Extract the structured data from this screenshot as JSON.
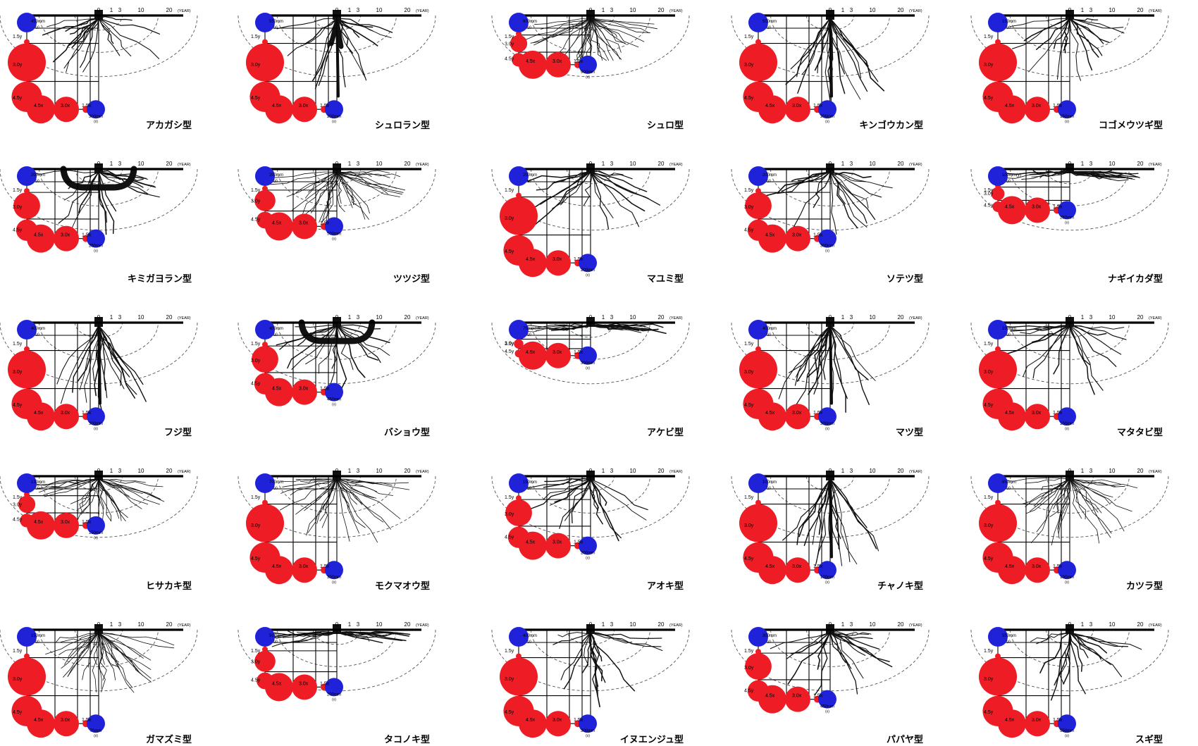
{
  "labels": {
    "year": "(YEAR)",
    "ticks": [
      "0",
      "1",
      "3",
      "10",
      "20"
    ],
    "y_marks": [
      "1.5y",
      "3.0y",
      "4.5y"
    ],
    "x_marks": [
      "4.5x",
      "3.0x",
      "1.5x"
    ],
    "y_unit": "(y)",
    "x_unit": "(x)"
  },
  "colors": {
    "red": "#ee1c24",
    "blue": "#1f22d8",
    "root": "#111111",
    "line": "#000000",
    "dash": "#555555"
  },
  "panels": [
    {
      "name": "アカガシ型",
      "y": "450mm",
      "x": "300mm",
      "vs": [
        1.0,
        1.0,
        1.0
      ],
      "root": "spread"
    },
    {
      "name": "シュロラン型",
      "y": "550mm",
      "x": "200mm",
      "vs": [
        1.0,
        1.0,
        1.0
      ],
      "root": "fork"
    },
    {
      "name": "シュロ型",
      "y": "600mm",
      "x": "900mm",
      "vs": [
        0.45,
        0.45,
        0.45
      ],
      "root": "fibrous"
    },
    {
      "name": "キンゴウカン型",
      "y": "500mm",
      "x": "200mm",
      "vs": [
        1.0,
        1.0,
        1.0
      ],
      "root": "tap"
    },
    {
      "name": "コゴメウツギ型",
      "y": "150mm",
      "x": "150mm",
      "vs": [
        1.0,
        1.0,
        1.0
      ],
      "root": "spread"
    },
    {
      "name": "キミガヨラン型",
      "y": "200mm",
      "x": "250mm",
      "vs": [
        0.7,
        0.7,
        0.7
      ],
      "root": "arch"
    },
    {
      "name": "ツツジ型",
      "y": "200mm",
      "x": "500mm",
      "vs": [
        0.55,
        0.55,
        0.55
      ],
      "root": "fibrous"
    },
    {
      "name": "マユミ型",
      "y": "200mm",
      "x": "200mm",
      "vs": [
        1.0,
        1.0,
        1.0
      ],
      "root": "spread"
    },
    {
      "name": "ソテツ型",
      "y": "200mm",
      "x": "300mm",
      "vs": [
        0.7,
        0.7,
        0.7
      ],
      "root": "spread"
    },
    {
      "name": "ナギイカダ型",
      "y": "100mm(y)",
      "x": "250mm",
      "vs": [
        0.35,
        0.35,
        0.35
      ],
      "root": "shallow"
    },
    {
      "name": "フジ型",
      "y": "400mm",
      "x": "300mm",
      "vs": [
        1.0,
        1.0,
        1.0
      ],
      "root": "tap"
    },
    {
      "name": "バショウ型",
      "y": "400mm",
      "x": "450mm",
      "vs": [
        0.7,
        0.7,
        0.7
      ],
      "root": "arch"
    },
    {
      "name": "アケビ型",
      "y": "75mm(y)",
      "x": "300mm",
      "vs": [
        0.25,
        0.25,
        0.25
      ],
      "root": "shallow"
    },
    {
      "name": "マツ型",
      "y": "400mm",
      "x": "300mm",
      "vs": [
        1.0,
        1.0,
        1.0
      ],
      "root": "tap"
    },
    {
      "name": "マタタビ型",
      "y": "100mm",
      "x": "100mm",
      "vs": [
        1.0,
        1.0,
        1.0
      ],
      "root": "spread"
    },
    {
      "name": "ヒサカキ型",
      "y": "130mm",
      "x": "150mm",
      "vs": [
        0.45,
        0.45,
        0.45
      ],
      "root": "fibrous"
    },
    {
      "name": "モクマオウ型",
      "y": "700mm",
      "x": "300mm",
      "vs": [
        1.0,
        1.0,
        1.0
      ],
      "root": "fibrous"
    },
    {
      "name": "アオキ型",
      "y": "150mm",
      "x": "200mm",
      "vs": [
        0.7,
        0.7,
        0.7
      ],
      "root": "spread"
    },
    {
      "name": "チャノキ型",
      "y": "100mm",
      "x": "100mm",
      "vs": [
        1.0,
        1.0,
        1.0
      ],
      "root": "tap"
    },
    {
      "name": "カツラ型",
      "y": "650mm",
      "x": "100mm",
      "vs": [
        1.0,
        1.0,
        1.0
      ],
      "root": "fibrous"
    },
    {
      "name": "ガマズミ型",
      "y": "150mm",
      "x": "70mm",
      "vs": [
        1.0,
        1.0,
        1.0
      ],
      "root": "fibrous"
    },
    {
      "name": "タコノキ型",
      "y": "50mm",
      "x": "200mm",
      "vs": [
        0.55,
        0.55,
        0.55
      ],
      "root": "shallow"
    },
    {
      "name": "イヌエンジュ型",
      "y": "400mm",
      "x": "300mm",
      "vs": [
        1.0,
        1.0,
        1.0
      ],
      "root": "spread"
    },
    {
      "name": "パパヤ型",
      "y": "300mm",
      "x": "450mm",
      "vs": [
        0.7,
        0.7,
        0.7
      ],
      "root": "spread"
    },
    {
      "name": "スギ型",
      "y": "550mm",
      "x": "550mm",
      "vs": [
        1.0,
        1.0,
        1.0
      ],
      "root": "spread"
    }
  ]
}
